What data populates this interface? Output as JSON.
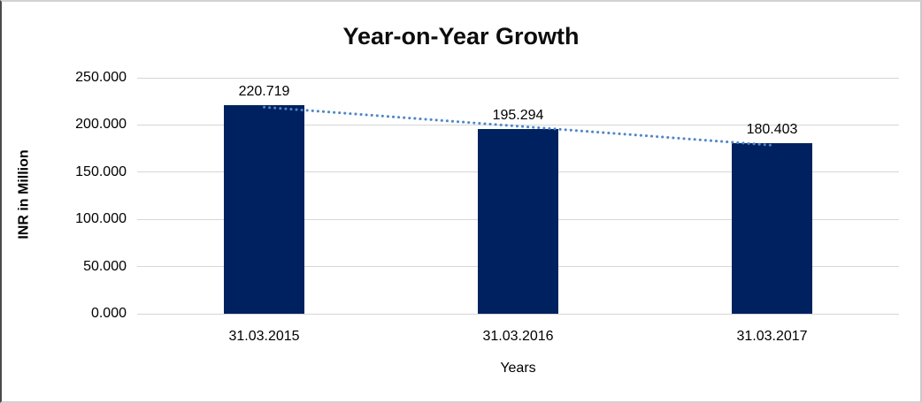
{
  "chart_data": {
    "type": "bar",
    "title": "Year-on-Year Growth",
    "xlabel": "Years",
    "ylabel": "INR in Million",
    "categories": [
      "31.03.2015",
      "31.03.2016",
      "31.03.2017"
    ],
    "values": [
      220.719,
      195.294,
      180.403
    ],
    "value_labels": [
      "220.719",
      "195.294",
      "180.403"
    ],
    "ytick_labels": [
      "250.000",
      "200.000",
      "150.000",
      "100.000",
      "50.000",
      "0.000"
    ],
    "ylim": [
      0,
      250
    ],
    "grid": "horizontal-only",
    "legend_position": "none",
    "bar_color": "#00215F",
    "gridline_color": "#d6d6d6",
    "trendline": {
      "type": "linear",
      "style": "dotted",
      "color": "#4F86C6",
      "from_value": 220.719,
      "to_value": 180.403
    }
  }
}
